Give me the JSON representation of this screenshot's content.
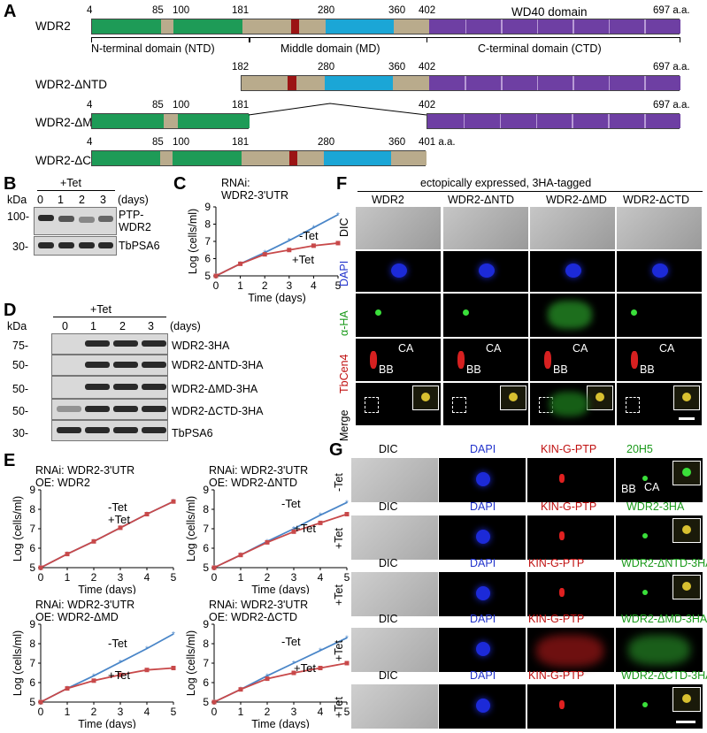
{
  "panelA": {
    "label": "A",
    "wdr2": {
      "name": "WDR2",
      "ticks": [
        "4",
        "85",
        "100",
        "181",
        "280",
        "360",
        "402",
        "697 a.a."
      ],
      "wd40": "WD40 domain",
      "ntd": "N-terminal domain (NTD)",
      "md": "Middle domain (MD)",
      "ctd": "C-terminal domain (CTD)"
    },
    "dntd": {
      "name": "WDR2-ΔNTD",
      "ticks": [
        "182",
        "280",
        "360",
        "402",
        "697 a.a."
      ]
    },
    "dmd": {
      "name": "WDR2-ΔMD",
      "ticks": [
        "4",
        "85",
        "100",
        "181",
        "402",
        "697 a.a."
      ]
    },
    "dctd": {
      "name": "WDR2-ΔCTD",
      "ticks": [
        "4",
        "85",
        "100",
        "181",
        "280",
        "360",
        "401 a.a."
      ]
    },
    "colors": {
      "ntd": "#1e9b57",
      "filler": "#b9ab8c",
      "red": "#9b1414",
      "blue": "#1ba6d6",
      "purple": "#6e3fa3"
    }
  },
  "panelB": {
    "label": "B",
    "tet": "+Tet",
    "kda": "kDa",
    "days": [
      "0",
      "1",
      "2",
      "3"
    ],
    "days_unit": "(days)",
    "markers": [
      "100-",
      "30-"
    ],
    "bands": [
      "PTP-",
      "WDR2",
      "TbPSA6"
    ]
  },
  "panelC": {
    "label": "C"
  },
  "panelD": {
    "label": "D",
    "tet": "+Tet",
    "kda": "kDa",
    "days": [
      "0",
      "1",
      "2",
      "3"
    ],
    "days_unit": "(days)",
    "markers": [
      "75-",
      "50-",
      "50-",
      "50-",
      "30-"
    ],
    "bands": [
      "WDR2-3HA",
      "WDR2-ΔNTD-3HA",
      "WDR2-ΔMD-3HA",
      "WDR2-ΔCTD-3HA",
      "TbPSA6"
    ]
  },
  "panelE": {
    "label": "E"
  },
  "chart_data": [
    {
      "type": "line",
      "title": "RNAi:",
      "subtitle": "WDR2-3'UTR",
      "xlabel": "Time (days)",
      "ylabel": "Log (cells/ml)",
      "xlim": [
        0,
        5
      ],
      "ylim": [
        5,
        9
      ],
      "x": [
        0,
        1,
        2,
        3,
        4,
        5
      ],
      "series": [
        {
          "name": "-Tet",
          "values": [
            5,
            5.7,
            6.35,
            7.05,
            7.8,
            8.55
          ]
        },
        {
          "name": "+Tet",
          "values": [
            5,
            5.7,
            6.25,
            6.5,
            6.75,
            6.9
          ]
        }
      ]
    },
    {
      "type": "line",
      "title": "RNAi: WDR2-3'UTR",
      "subtitle": "OE: WDR2",
      "xlabel": "Time (days)",
      "ylabel": "Log (cells/ml)",
      "xlim": [
        0,
        5
      ],
      "ylim": [
        5,
        9
      ],
      "x": [
        0,
        1,
        2,
        3,
        4,
        5
      ],
      "series": [
        {
          "name": "-Tet",
          "values": [
            5,
            5.7,
            6.35,
            7.05,
            7.75,
            8.4
          ]
        },
        {
          "name": "+Tet",
          "values": [
            5,
            5.7,
            6.35,
            7.05,
            7.75,
            8.4
          ]
        }
      ]
    },
    {
      "type": "line",
      "title": "RNAi: WDR2-3'UTR",
      "subtitle": "OE: WDR2-ΔNTD",
      "xlabel": "Time (days)",
      "ylabel": "Log (cells/ml)",
      "xlim": [
        0,
        5
      ],
      "ylim": [
        5,
        9
      ],
      "x": [
        0,
        1,
        2,
        3,
        4,
        5
      ],
      "series": [
        {
          "name": "-Tet",
          "values": [
            5,
            5.65,
            6.35,
            7.0,
            7.7,
            8.35
          ]
        },
        {
          "name": "+Tet",
          "values": [
            5,
            5.65,
            6.3,
            6.85,
            7.3,
            7.75
          ]
        }
      ]
    },
    {
      "type": "line",
      "title": "RNAi: WDR2-3'UTR",
      "subtitle": "OE: WDR2-ΔMD",
      "xlabel": "Time (days)",
      "ylabel": "Log (cells/ml)",
      "xlim": [
        0,
        5
      ],
      "ylim": [
        5,
        9
      ],
      "x": [
        0,
        1,
        2,
        3,
        4,
        5
      ],
      "series": [
        {
          "name": "-Tet",
          "values": [
            5,
            5.7,
            6.35,
            7.05,
            7.75,
            8.5
          ]
        },
        {
          "name": "+Tet",
          "values": [
            5,
            5.7,
            6.1,
            6.4,
            6.65,
            6.75
          ]
        }
      ]
    },
    {
      "type": "line",
      "title": "RNAi: WDR2-3'UTR",
      "subtitle": "OE: WDR2-ΔCTD",
      "xlabel": "Time (days)",
      "ylabel": "Log (cells/ml)",
      "xlim": [
        0,
        5
      ],
      "ylim": [
        5,
        9
      ],
      "x": [
        0,
        1,
        2,
        3,
        4,
        5
      ],
      "series": [
        {
          "name": "-Tet",
          "values": [
            5,
            5.65,
            6.35,
            7.0,
            7.65,
            8.3
          ]
        },
        {
          "name": "+Tet",
          "values": [
            5,
            5.65,
            6.2,
            6.5,
            6.75,
            7.0
          ]
        }
      ]
    }
  ],
  "panelF": {
    "label": "F",
    "header": "ectopically expressed, 3HA-tagged",
    "cols": [
      "WDR2",
      "WDR2-ΔNTD",
      "WDR2-ΔMD",
      "WDR2-ΔCTD"
    ],
    "rows": [
      "DIC",
      "DAPI",
      "α-HA",
      "TbCen4",
      "Merge"
    ],
    "ca": "CA",
    "bb": "BB"
  },
  "panelG": {
    "label": "G",
    "rows": [
      {
        "tet": "-Tet",
        "dic": "DIC",
        "dapi": "DAPI",
        "red": "KIN-G-PTP",
        "green": "20H5"
      },
      {
        "tet": "+Tet",
        "dic": "DIC",
        "dapi": "DAPI",
        "red": "KIN-G-PTP",
        "green": "WDR2-3HA"
      },
      {
        "tet": "+Tet",
        "dic": "DIC",
        "dapi": "DAPI",
        "red": "KIN-G-PTP",
        "green": "WDR2-ΔNTD-3HA"
      },
      {
        "tet": "+Tet",
        "dic": "DIC",
        "dapi": "DAPI",
        "red": "KIN-G-PTP",
        "green": "WDR2-ΔMD-3HA"
      },
      {
        "tet": "+Tet",
        "dic": "DIC",
        "dapi": "DAPI",
        "red": "KIN-G-PTP",
        "green": "WDR2-ΔCTD-3HA"
      }
    ],
    "bb": "BB",
    "ca": "CA"
  }
}
